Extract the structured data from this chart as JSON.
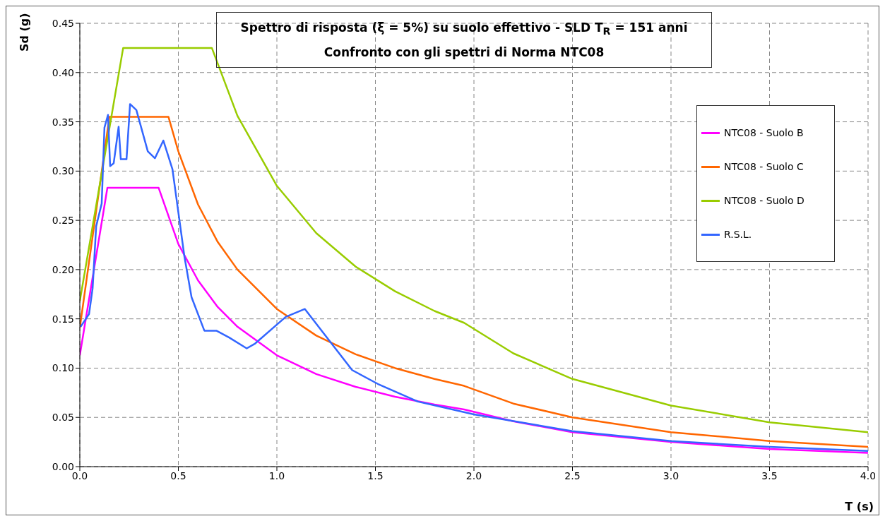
{
  "chart_data": {
    "type": "line",
    "title": "Spettro di risposta (ξ = 5%) su suolo effettivo - SLD  T$_{R}$ = 151 anni",
    "subtitle": "Confronto con gli spettri di Norma NTC08",
    "xlabel": "T (s)",
    "ylabel": "Sd (g)",
    "xlim": [
      0,
      4
    ],
    "ylim": [
      0,
      0.45
    ],
    "xticks": [
      {
        "value": 0,
        "label": "0.0"
      },
      {
        "value": 0.5,
        "label": "0.5"
      },
      {
        "value": 1,
        "label": "1.0"
      },
      {
        "value": 1.5,
        "label": "1.5"
      },
      {
        "value": 2,
        "label": "2.0"
      },
      {
        "value": 2.5,
        "label": "2.5"
      },
      {
        "value": 3,
        "label": "3.0"
      },
      {
        "value": 3.5,
        "label": "3.5"
      },
      {
        "value": 4,
        "label": "4.0"
      }
    ],
    "yticks": [
      {
        "value": 0,
        "label": "0.00"
      },
      {
        "value": 0.05,
        "label": "0.05"
      },
      {
        "value": 0.1,
        "label": "0.10"
      },
      {
        "value": 0.15,
        "label": "0.15"
      },
      {
        "value": 0.2,
        "label": "0.20"
      },
      {
        "value": 0.25,
        "label": "0.25"
      },
      {
        "value": 0.3,
        "label": "0.30"
      },
      {
        "value": 0.35,
        "label": "0.35"
      },
      {
        "value": 0.4,
        "label": "0.40"
      },
      {
        "value": 0.45,
        "label": "0.45"
      }
    ],
    "grid": true,
    "legend": "right",
    "marker": "none",
    "line_style": "solid",
    "series": [
      {
        "name": "NTC08 - Suolo B",
        "color": "#ff00ff",
        "x": [
          0,
          0.14,
          0.4,
          0.5,
          0.6,
          0.7,
          0.8,
          1.0,
          1.2,
          1.4,
          1.6,
          1.8,
          1.95,
          2.2,
          2.5,
          3.0,
          3.5,
          4.0
        ],
        "values": [
          0.113,
          0.283,
          0.283,
          0.226,
          0.189,
          0.162,
          0.142,
          0.113,
          0.094,
          0.081,
          0.071,
          0.063,
          0.058,
          0.046,
          0.035,
          0.025,
          0.018,
          0.014
        ]
      },
      {
        "name": "NTC08 - Suolo C",
        "color": "#ff6600",
        "x": [
          0,
          0.15,
          0.45,
          0.5,
          0.6,
          0.7,
          0.8,
          1.0,
          1.2,
          1.4,
          1.6,
          1.8,
          1.95,
          2.2,
          2.5,
          3.0,
          3.5,
          4.0
        ],
        "values": [
          0.141,
          0.355,
          0.355,
          0.32,
          0.266,
          0.228,
          0.2,
          0.16,
          0.133,
          0.114,
          0.1,
          0.089,
          0.082,
          0.064,
          0.05,
          0.035,
          0.026,
          0.02
        ]
      },
      {
        "name": "NTC08 - Suolo D",
        "color": "#99cc00",
        "x": [
          0,
          0.22,
          0.67,
          0.8,
          1.0,
          1.2,
          1.4,
          1.6,
          1.8,
          1.95,
          2.2,
          2.5,
          3.0,
          3.5,
          4.0
        ],
        "values": [
          0.168,
          0.425,
          0.425,
          0.356,
          0.285,
          0.237,
          0.203,
          0.178,
          0.158,
          0.146,
          0.115,
          0.089,
          0.062,
          0.045,
          0.035
        ]
      },
      {
        "name": "R.S.L.",
        "color": "#3366ff",
        "x": [
          0.004,
          0.047,
          0.065,
          0.083,
          0.111,
          0.125,
          0.143,
          0.154,
          0.172,
          0.197,
          0.208,
          0.237,
          0.255,
          0.287,
          0.345,
          0.381,
          0.424,
          0.47,
          0.531,
          0.567,
          0.632,
          0.693,
          0.758,
          0.847,
          0.89,
          1.045,
          1.142,
          1.382,
          1.512,
          1.716,
          2.0,
          2.5,
          3.0,
          3.5,
          4.0
        ],
        "values": [
          0.142,
          0.155,
          0.181,
          0.244,
          0.267,
          0.344,
          0.357,
          0.305,
          0.308,
          0.345,
          0.312,
          0.312,
          0.368,
          0.362,
          0.32,
          0.313,
          0.331,
          0.302,
          0.213,
          0.172,
          0.138,
          0.138,
          0.131,
          0.12,
          0.125,
          0.152,
          0.16,
          0.098,
          0.084,
          0.066,
          0.053,
          0.036,
          0.026,
          0.02,
          0.016
        ]
      }
    ]
  }
}
